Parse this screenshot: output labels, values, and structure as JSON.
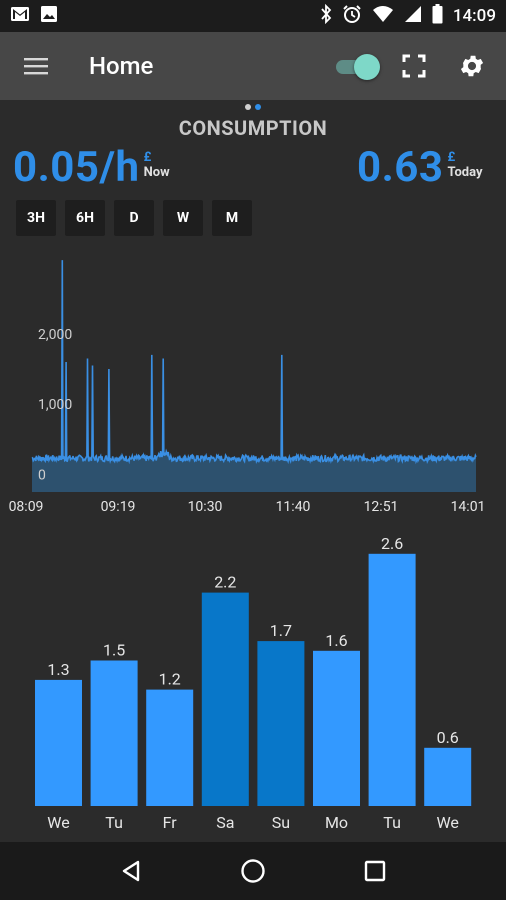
{
  "status_bar": {
    "time": "14:09",
    "left_icons": [
      "gmail-icon",
      "image-icon"
    ],
    "right_icons": [
      "bluetooth-icon",
      "alarm-icon",
      "wifi-icon",
      "signal-icon",
      "battery-icon"
    ]
  },
  "app_bar": {
    "title": "Home",
    "menu_icon": "menu-icon",
    "fullscreen_icon": "fullscreen-icon",
    "settings_icon": "gear-icon",
    "toggle_on": true
  },
  "pager": {
    "pages": 2,
    "active_index": 1
  },
  "section_title": "CONSUMPTION",
  "now": {
    "value": "0.05/h",
    "unit": "£",
    "label": "Now"
  },
  "today": {
    "value": "0.63",
    "unit": "£",
    "label": "Today"
  },
  "range_tabs": [
    "3H",
    "6H",
    "D",
    "W",
    "M"
  ],
  "colors": {
    "accent": "#2f8ee8",
    "bar_light": "#3399ff",
    "bar_dark": "#0877c9",
    "area_fill": "#2d5576",
    "line": "#3a8fe3"
  },
  "chart_data": [
    {
      "type": "area",
      "x_tick_labels": [
        "08:09",
        "09:19",
        "10:30",
        "11:40",
        "12:51",
        "14:01"
      ],
      "x_range": [
        "08:09",
        "14:01"
      ],
      "y_tick_labels": [
        "2,000",
        "1,000",
        "0"
      ],
      "ylim": [
        -250,
        3250
      ],
      "baseline": 230,
      "spikes": [
        {
          "time": "08:33",
          "value": 3050
        },
        {
          "time": "08:36",
          "value": 1600
        },
        {
          "time": "08:53",
          "value": 1650
        },
        {
          "time": "08:57",
          "value": 1550
        },
        {
          "time": "09:10",
          "value": 1500
        },
        {
          "time": "09:44",
          "value": 1700
        },
        {
          "time": "09:53",
          "value": 1650
        },
        {
          "time": "11:27",
          "value": 1700
        }
      ]
    },
    {
      "type": "bar",
      "categories": [
        "We",
        "Tu",
        "Fr",
        "Sa",
        "Su",
        "Mo",
        "Tu",
        "We"
      ],
      "values": [
        1.3,
        1.5,
        1.2,
        2.2,
        1.7,
        1.6,
        2.6,
        0.6
      ],
      "value_labels": [
        "1.3",
        "1.5",
        "1.2",
        "2.2",
        "1.7",
        "1.6",
        "2.6",
        "0.6"
      ],
      "weekend": [
        false,
        false,
        false,
        true,
        true,
        false,
        false,
        false
      ]
    }
  ]
}
